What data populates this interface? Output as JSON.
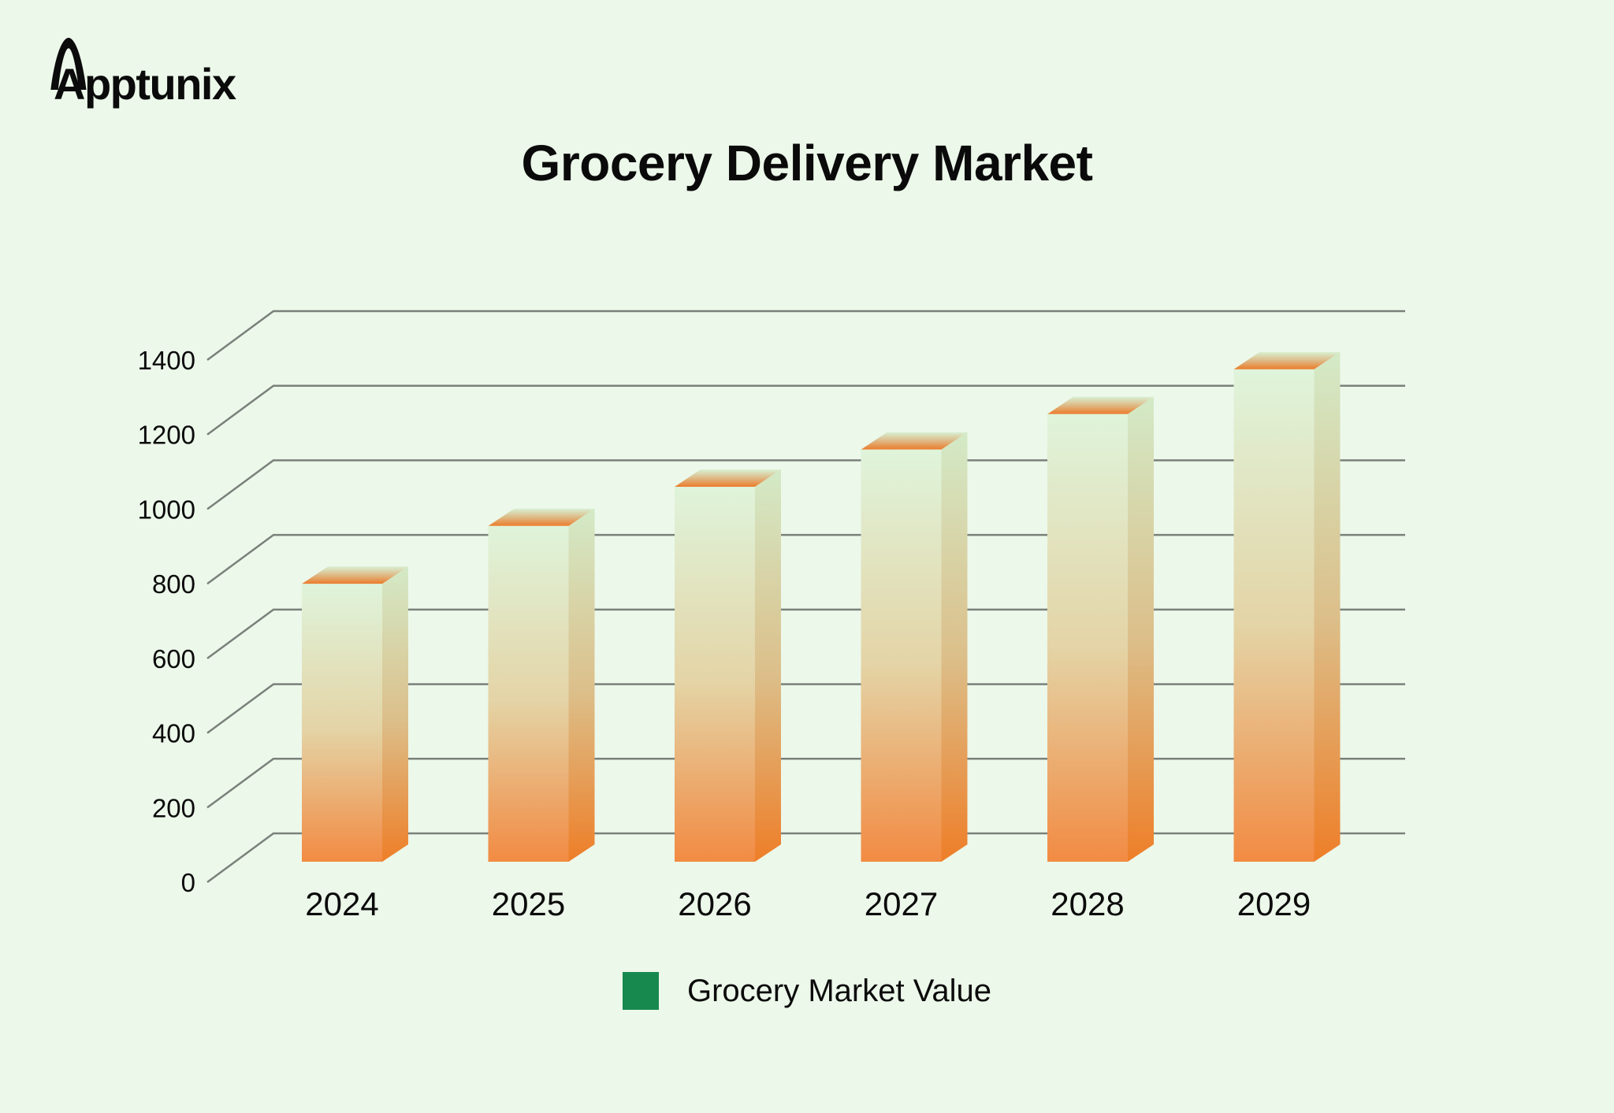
{
  "logo": {
    "text": "Apptunix"
  },
  "header": {
    "title": "Grocery Delivery Market"
  },
  "legend": {
    "label": "Grocery Market Value",
    "swatch_color": "#17894F"
  },
  "chart_data": {
    "type": "bar",
    "style": "3d-column",
    "title": "Grocery Delivery Market",
    "categories": [
      "2024",
      "2025",
      "2026",
      "2027",
      "2028",
      "2029"
    ],
    "series": [
      {
        "name": "Grocery Market Value",
        "values": [
          745,
          900,
          1005,
          1105,
          1200,
          1320
        ]
      }
    ],
    "ylim": [
      0,
      1400
    ],
    "yticks": [
      0,
      200,
      400,
      600,
      800,
      1000,
      1200,
      1400
    ],
    "xlabel": "",
    "ylabel": "",
    "grid": true,
    "legend_position": "bottom",
    "colors": {
      "background": "#ECF8EA",
      "grid": "#7A807A",
      "text": "#0B0B0B",
      "legend_swatch": "#17894F",
      "bar_front_gradient": [
        "#DFF4DB",
        "#E4D4A6",
        "#F28B43"
      ],
      "bar_side_gradient": [
        "#D3EAC7",
        "#DCBF8A",
        "#EE7E28"
      ],
      "bar_top_gradient": [
        "#D8F0D2",
        "#DDBF8D",
        "#EB7C2B"
      ]
    }
  }
}
